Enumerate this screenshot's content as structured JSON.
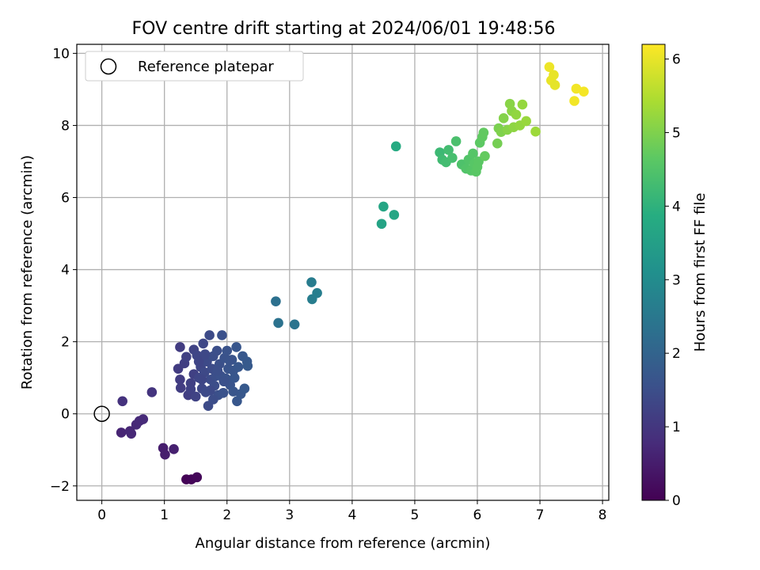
{
  "chart_data": {
    "type": "scatter",
    "title": "FOV centre drift starting at 2024/06/01 19:48:56",
    "xlabel": "Angular distance from reference (arcmin)",
    "ylabel": "Rotation from reference (arcmin)",
    "xlim": [
      -0.4,
      8.1
    ],
    "ylim": [
      -2.4,
      10.25
    ],
    "xticks": [
      0,
      1,
      2,
      3,
      4,
      5,
      6,
      7,
      8
    ],
    "yticks": [
      -2,
      0,
      2,
      4,
      6,
      8,
      10
    ],
    "grid": true,
    "legend": {
      "placement": "top-left",
      "entries": [
        "Reference platepar"
      ]
    },
    "reference_point": {
      "x": 0,
      "y": 0
    },
    "colorbar": {
      "label": "Hours from first FF file",
      "colormap": "viridis",
      "range": [
        0,
        6.2
      ],
      "ticks": [
        0,
        1,
        2,
        3,
        4,
        5,
        6
      ]
    },
    "points": [
      [
        1.35,
        -1.82,
        0.05
      ],
      [
        1.43,
        -1.82,
        0.08
      ],
      [
        1.52,
        -1.76,
        0.1
      ],
      [
        0.98,
        -0.95,
        0.5
      ],
      [
        1.01,
        -1.13,
        0.52
      ],
      [
        1.15,
        -0.98,
        0.55
      ],
      [
        0.31,
        -0.52,
        0.65
      ],
      [
        0.45,
        -0.48,
        0.68
      ],
      [
        0.47,
        -0.55,
        0.7
      ],
      [
        0.55,
        -0.3,
        0.72
      ],
      [
        0.6,
        -0.2,
        0.74
      ],
      [
        0.66,
        -0.15,
        0.76
      ],
      [
        0.33,
        0.35,
        0.9
      ],
      [
        0.8,
        0.6,
        0.95
      ],
      [
        1.25,
        1.85,
        1.1
      ],
      [
        1.22,
        1.25,
        1.1
      ],
      [
        1.25,
        0.95,
        1.12
      ],
      [
        1.26,
        0.72,
        1.13
      ],
      [
        1.32,
        1.4,
        1.15
      ],
      [
        1.38,
        0.52,
        1.15
      ],
      [
        1.42,
        0.85,
        1.2
      ],
      [
        1.47,
        1.1,
        1.2
      ],
      [
        1.47,
        1.78,
        1.25
      ],
      [
        1.5,
        0.48,
        1.25
      ],
      [
        1.52,
        1.62,
        1.3
      ],
      [
        1.55,
        1.0,
        1.3
      ],
      [
        1.58,
        1.3,
        1.32
      ],
      [
        1.6,
        0.7,
        1.35
      ],
      [
        1.62,
        1.95,
        1.35
      ],
      [
        1.64,
        1.15,
        1.38
      ],
      [
        1.66,
        0.6,
        1.4
      ],
      [
        1.68,
        1.45,
        1.4
      ],
      [
        1.7,
        0.22,
        1.42
      ],
      [
        1.72,
        2.18,
        1.42
      ],
      [
        1.74,
        0.95,
        1.45
      ],
      [
        1.76,
        1.25,
        1.45
      ],
      [
        1.78,
        1.6,
        1.48
      ],
      [
        1.8,
        0.78,
        1.48
      ],
      [
        1.82,
        1.05,
        1.5
      ],
      [
        1.84,
        1.75,
        1.5
      ],
      [
        1.86,
        0.52,
        1.52
      ],
      [
        1.88,
        1.38,
        1.52
      ],
      [
        1.9,
        1.05,
        1.55
      ],
      [
        1.92,
        2.18,
        1.55
      ],
      [
        1.94,
        0.58,
        1.58
      ],
      [
        1.96,
        1.55,
        1.58
      ],
      [
        1.98,
        0.98,
        1.6
      ],
      [
        2.0,
        1.75,
        1.6
      ],
      [
        2.02,
        1.25,
        1.62
      ],
      [
        2.05,
        0.8,
        1.62
      ],
      [
        2.08,
        1.5,
        1.65
      ],
      [
        2.1,
        1.2,
        1.65
      ],
      [
        2.12,
        1.0,
        1.68
      ],
      [
        2.15,
        1.85,
        1.68
      ],
      [
        2.16,
        0.35,
        1.7
      ],
      [
        2.18,
        1.3,
        1.7
      ],
      [
        2.22,
        0.55,
        1.72
      ],
      [
        2.25,
        1.6,
        1.72
      ],
      [
        2.28,
        0.7,
        1.75
      ],
      [
        2.32,
        1.45,
        1.75
      ],
      [
        2.33,
        1.33,
        1.78
      ],
      [
        1.35,
        1.58,
        1.2
      ],
      [
        1.42,
        0.68,
        1.22
      ],
      [
        1.55,
        1.45,
        1.3
      ],
      [
        1.6,
        0.95,
        1.33
      ],
      [
        1.65,
        1.65,
        1.36
      ],
      [
        1.73,
        0.65,
        1.4
      ],
      [
        1.85,
        1.2,
        1.5
      ],
      [
        1.95,
        0.9,
        1.56
      ],
      [
        2.04,
        1.48,
        1.6
      ],
      [
        2.1,
        0.62,
        1.66
      ],
      [
        1.78,
        0.4,
        1.46
      ],
      [
        2.78,
        3.12,
        2.3
      ],
      [
        2.82,
        2.52,
        2.35
      ],
      [
        3.08,
        2.48,
        2.4
      ],
      [
        3.35,
        3.65,
        2.6
      ],
      [
        3.36,
        3.18,
        2.62
      ],
      [
        3.44,
        3.35,
        2.65
      ],
      [
        4.47,
        5.27,
        3.6
      ],
      [
        4.5,
        5.75,
        3.65
      ],
      [
        4.67,
        5.52,
        3.7
      ],
      [
        4.7,
        7.42,
        3.8
      ],
      [
        5.4,
        7.25,
        4.2
      ],
      [
        5.44,
        7.05,
        4.25
      ],
      [
        5.5,
        6.98,
        4.3
      ],
      [
        5.54,
        7.32,
        4.3
      ],
      [
        5.6,
        7.1,
        4.35
      ],
      [
        5.66,
        7.56,
        4.4
      ],
      [
        5.75,
        6.92,
        4.45
      ],
      [
        5.82,
        6.8,
        4.5
      ],
      [
        5.86,
        7.05,
        4.5
      ],
      [
        5.9,
        6.75,
        4.55
      ],
      [
        5.93,
        7.22,
        4.55
      ],
      [
        5.95,
        6.95,
        4.58
      ],
      [
        5.98,
        6.72,
        4.6
      ],
      [
        6.0,
        6.85,
        4.62
      ],
      [
        6.02,
        7.0,
        4.62
      ],
      [
        6.04,
        7.52,
        4.65
      ],
      [
        6.08,
        7.68,
        4.68
      ],
      [
        6.1,
        7.8,
        4.7
      ],
      [
        6.12,
        7.15,
        4.72
      ],
      [
        6.32,
        7.5,
        4.9
      ],
      [
        6.34,
        7.92,
        4.95
      ],
      [
        6.38,
        7.82,
        5.0
      ],
      [
        6.42,
        8.2,
        5.05
      ],
      [
        6.48,
        7.88,
        5.08
      ],
      [
        6.52,
        8.6,
        5.1
      ],
      [
        6.55,
        8.4,
        5.12
      ],
      [
        6.58,
        7.95,
        5.15
      ],
      [
        6.62,
        8.3,
        5.18
      ],
      [
        6.68,
        8.0,
        5.2
      ],
      [
        6.72,
        8.58,
        5.22
      ],
      [
        6.78,
        8.12,
        5.25
      ],
      [
        6.93,
        7.83,
        5.3
      ],
      [
        7.15,
        9.62,
        6.05
      ],
      [
        7.18,
        9.25,
        6.0
      ],
      [
        7.22,
        9.4,
        6.0
      ],
      [
        7.24,
        9.12,
        5.98
      ],
      [
        7.55,
        8.68,
        6.1
      ],
      [
        7.58,
        9.02,
        6.1
      ],
      [
        7.7,
        8.94,
        6.12
      ]
    ]
  }
}
